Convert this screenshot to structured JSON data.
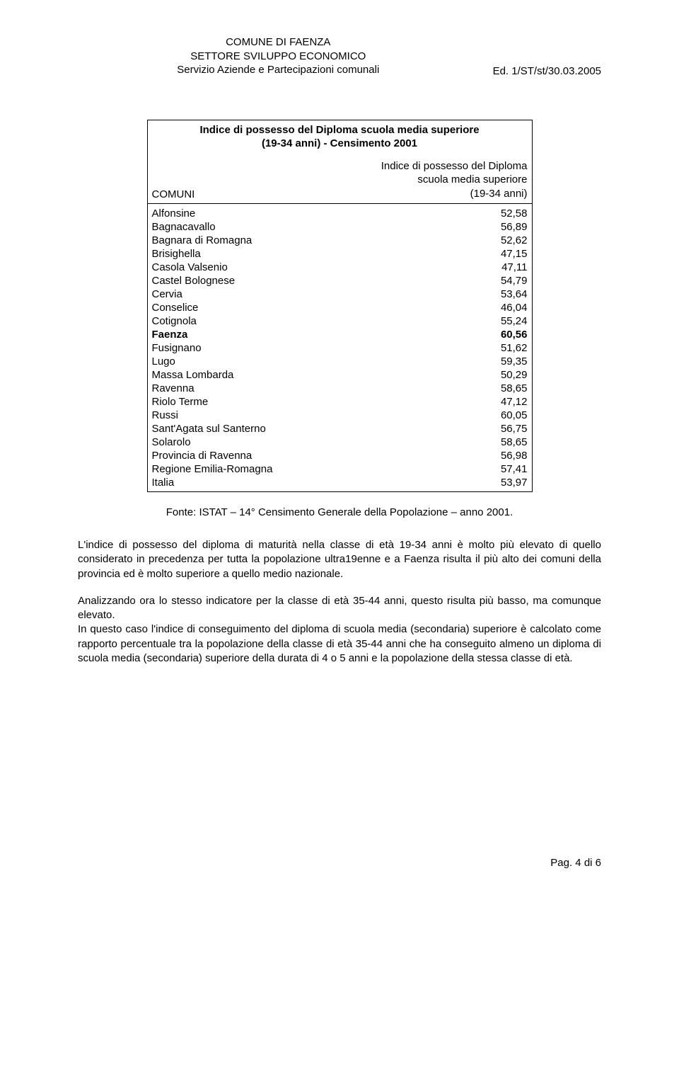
{
  "header": {
    "line1": "COMUNE DI FAENZA",
    "line2": "SETTORE SVILUPPO ECONOMICO",
    "line3": "Servizio Aziende e Partecipazioni comunali",
    "edition": "Ed. 1/ST/st/30.03.2005"
  },
  "table": {
    "title_line1": "Indice di possesso del Diploma scuola media superiore",
    "title_line2": "(19-34 anni) - Censimento 2001",
    "col1_header": "COMUNI",
    "col2_header_line1": "Indice di possesso del Diploma",
    "col2_header_line2": "scuola media superiore",
    "col2_header_line3": "(19-34 anni)",
    "rows": [
      {
        "name": "Alfonsine",
        "value": "52,58",
        "bold": false
      },
      {
        "name": "Bagnacavallo",
        "value": "56,89",
        "bold": false
      },
      {
        "name": "Bagnara di Romagna",
        "value": "52,62",
        "bold": false
      },
      {
        "name": "Brisighella",
        "value": "47,15",
        "bold": false
      },
      {
        "name": "Casola Valsenio",
        "value": "47,11",
        "bold": false
      },
      {
        "name": "Castel Bolognese",
        "value": "54,79",
        "bold": false
      },
      {
        "name": "Cervia",
        "value": "53,64",
        "bold": false
      },
      {
        "name": "Conselice",
        "value": "46,04",
        "bold": false
      },
      {
        "name": "Cotignola",
        "value": "55,24",
        "bold": false
      },
      {
        "name": "Faenza",
        "value": "60,56",
        "bold": true
      },
      {
        "name": "Fusignano",
        "value": "51,62",
        "bold": false
      },
      {
        "name": "Lugo",
        "value": "59,35",
        "bold": false
      },
      {
        "name": "Massa Lombarda",
        "value": "50,29",
        "bold": false
      },
      {
        "name": "Ravenna",
        "value": "58,65",
        "bold": false
      },
      {
        "name": "Riolo Terme",
        "value": "47,12",
        "bold": false
      },
      {
        "name": "Russi",
        "value": "60,05",
        "bold": false
      },
      {
        "name": "Sant'Agata sul Santerno",
        "value": "56,75",
        "bold": false
      },
      {
        "name": "Solarolo",
        "value": "58,65",
        "bold": false
      },
      {
        "name": "Provincia di Ravenna",
        "value": "56,98",
        "bold": false
      },
      {
        "name": "Regione Emilia-Romagna",
        "value": "57,41",
        "bold": false
      },
      {
        "name": "Italia",
        "value": "53,97",
        "bold": false
      }
    ]
  },
  "caption": "Fonte: ISTAT – 14° Censimento Generale della Popolazione – anno 2001.",
  "paragraphs": {
    "p1": "L'indice di possesso del diploma di maturità nella classe di età 19-34 anni è molto più elevato di quello considerato in precedenza per tutta la popolazione ultra19enne e a Faenza risulta il più alto dei comuni della provincia ed è molto superiore a quello medio nazionale.",
    "p2": "Analizzando ora lo stesso indicatore per la classe di età 35-44 anni, questo risulta più basso, ma comunque elevato.",
    "p3": "In questo caso l'indice di conseguimento del diploma di scuola media (secondaria) superiore è calcolato come rapporto percentuale tra la popolazione della classe di età 35-44 anni che ha conseguito almeno un diploma di scuola media (secondaria) superiore della durata di 4 o 5 anni e la popolazione della stessa classe di età."
  },
  "footer": "Pag. 4 di 6"
}
